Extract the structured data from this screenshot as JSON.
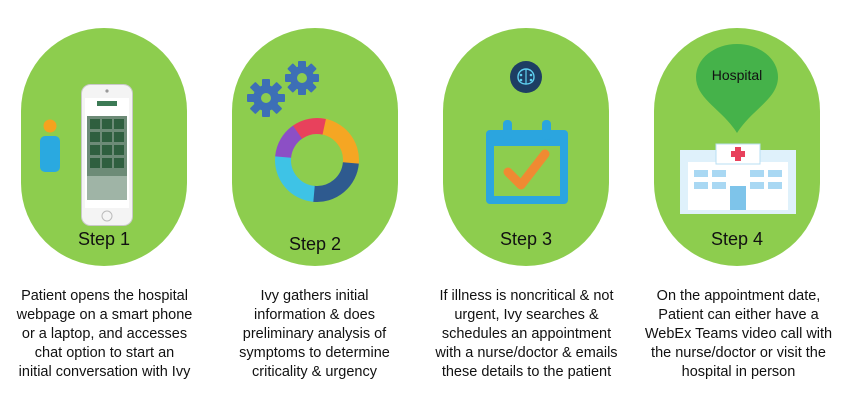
{
  "steps": [
    {
      "title": "Step 1",
      "lines": [
        "Patient opens the hospital",
        "webpage on a smart phone",
        "or a laptop, and accesses",
        "chat option to start an",
        "initial conversation with Ivy"
      ],
      "icon": "smartphone-icon"
    },
    {
      "title": "Step 2",
      "lines": [
        "Ivy gathers initial",
        "information & does",
        "preliminary analysis of",
        "symptoms to determine",
        "criticality & urgency"
      ],
      "icon": "gears-icon"
    },
    {
      "title": "Step 3",
      "lines": [
        "If illness is noncritical & not",
        "urgent, Ivy searches &",
        "schedules an appointment",
        "with a nurse/doctor & emails",
        "these details to the patient"
      ],
      "icon": "calendar-check-icon"
    },
    {
      "title": "Step 4",
      "lines": [
        "On the appointment date,",
        "Patient can either have a",
        "WebEx Teams video call with",
        "the nurse/doctor or visit the",
        "hospital in person"
      ],
      "icon": "hospital-building-icon",
      "pin_label": "Hospital"
    }
  ],
  "colors": {
    "pill": "#8dcd4e",
    "gear": "#3d6fb6",
    "calendar": "#2ba5df",
    "check": "#f08a32",
    "pin": "#45b24a"
  }
}
